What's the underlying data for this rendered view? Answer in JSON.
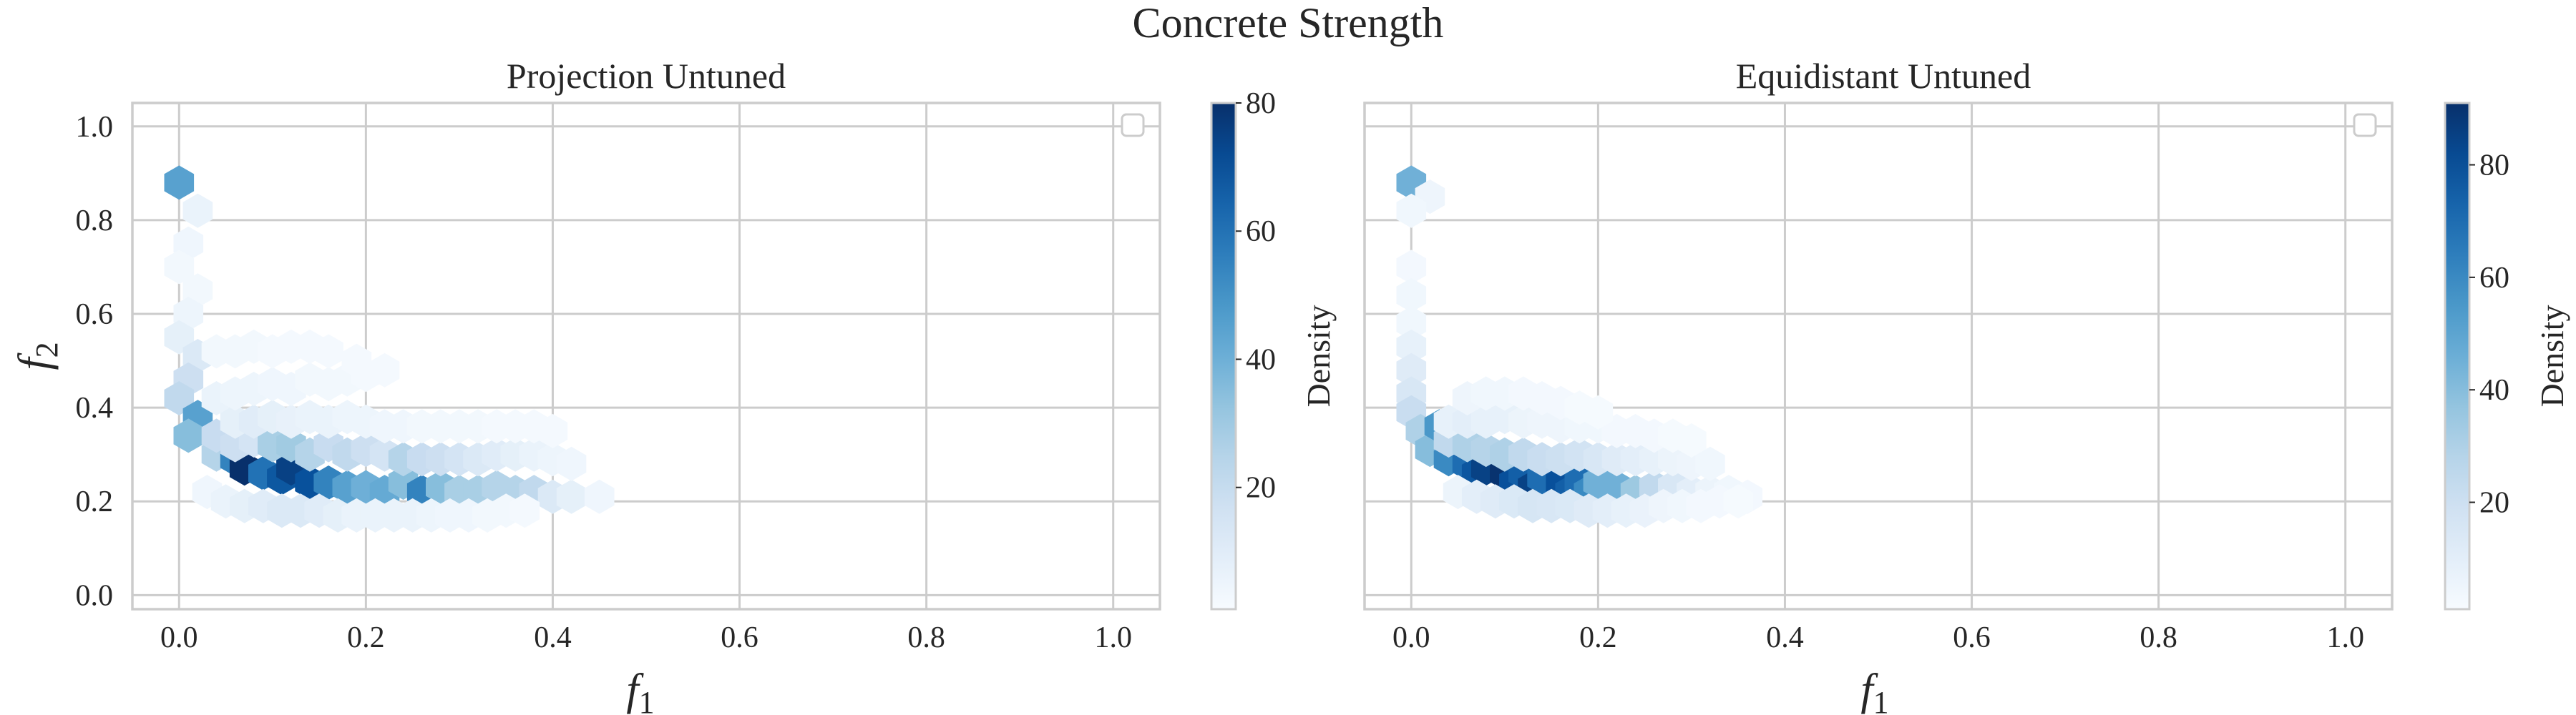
{
  "figure": {
    "suptitle": "Concrete Strength"
  },
  "chart_data": [
    {
      "type": "heatmap",
      "subtype": "hexbin",
      "title": "Projection Untuned",
      "xlabel": "f",
      "xlabel_sub": "1",
      "ylabel": "f",
      "ylabel_sub": "2",
      "xlim": [
        -0.05,
        1.05
      ],
      "ylim": [
        -0.03,
        1.05
      ],
      "xticks": [
        "0.0",
        "0.2",
        "0.4",
        "0.6",
        "0.8",
        "1.0"
      ],
      "yticks": [
        "0.0",
        "0.2",
        "0.4",
        "0.6",
        "0.8",
        "1.0"
      ],
      "grid": true,
      "colormap": "Blues",
      "colorbar": {
        "label": "Density",
        "min": 1,
        "max": 80,
        "ticks": [
          "20",
          "40",
          "60",
          "80"
        ]
      },
      "legend": "top-right (empty)",
      "cells": [
        [
          0.0,
          0.88,
          45
        ],
        [
          0.02,
          0.82,
          6
        ],
        [
          0.01,
          0.75,
          4
        ],
        [
          0.0,
          0.7,
          3
        ],
        [
          0.02,
          0.65,
          3
        ],
        [
          0.01,
          0.6,
          5
        ],
        [
          0.0,
          0.55,
          8
        ],
        [
          0.02,
          0.51,
          12
        ],
        [
          0.01,
          0.46,
          18
        ],
        [
          0.0,
          0.42,
          22
        ],
        [
          0.02,
          0.38,
          45
        ],
        [
          0.01,
          0.34,
          35
        ],
        [
          0.04,
          0.3,
          25
        ],
        [
          0.06,
          0.29,
          55
        ],
        [
          0.07,
          0.27,
          80
        ],
        [
          0.09,
          0.26,
          60
        ],
        [
          0.11,
          0.25,
          68
        ],
        [
          0.12,
          0.27,
          75
        ],
        [
          0.14,
          0.24,
          70
        ],
        [
          0.16,
          0.24,
          55
        ],
        [
          0.18,
          0.23,
          45
        ],
        [
          0.2,
          0.23,
          40
        ],
        [
          0.22,
          0.22,
          42
        ],
        [
          0.24,
          0.24,
          35
        ],
        [
          0.26,
          0.22,
          55
        ],
        [
          0.28,
          0.23,
          35
        ],
        [
          0.3,
          0.22,
          28
        ],
        [
          0.32,
          0.22,
          28
        ],
        [
          0.34,
          0.23,
          25
        ],
        [
          0.36,
          0.22,
          25
        ],
        [
          0.38,
          0.22,
          22
        ],
        [
          0.4,
          0.21,
          12
        ],
        [
          0.42,
          0.21,
          8
        ],
        [
          0.45,
          0.21,
          4
        ],
        [
          0.04,
          0.34,
          20
        ],
        [
          0.06,
          0.32,
          18
        ],
        [
          0.08,
          0.33,
          15
        ],
        [
          0.1,
          0.32,
          28
        ],
        [
          0.12,
          0.32,
          30
        ],
        [
          0.14,
          0.3,
          25
        ],
        [
          0.16,
          0.32,
          20
        ],
        [
          0.18,
          0.3,
          22
        ],
        [
          0.2,
          0.31,
          18
        ],
        [
          0.22,
          0.3,
          15
        ],
        [
          0.24,
          0.29,
          25
        ],
        [
          0.26,
          0.29,
          20
        ],
        [
          0.28,
          0.29,
          18
        ],
        [
          0.3,
          0.29,
          15
        ],
        [
          0.32,
          0.29,
          12
        ],
        [
          0.34,
          0.3,
          10
        ],
        [
          0.36,
          0.3,
          8
        ],
        [
          0.38,
          0.3,
          6
        ],
        [
          0.4,
          0.29,
          5
        ],
        [
          0.42,
          0.28,
          4
        ],
        [
          0.06,
          0.37,
          8
        ],
        [
          0.08,
          0.37,
          10
        ],
        [
          0.1,
          0.38,
          8
        ],
        [
          0.12,
          0.37,
          7
        ],
        [
          0.14,
          0.38,
          6
        ],
        [
          0.16,
          0.37,
          6
        ],
        [
          0.18,
          0.38,
          5
        ],
        [
          0.2,
          0.37,
          5
        ],
        [
          0.22,
          0.36,
          4
        ],
        [
          0.24,
          0.36,
          4
        ],
        [
          0.26,
          0.36,
          3
        ],
        [
          0.28,
          0.36,
          3
        ],
        [
          0.3,
          0.36,
          3
        ],
        [
          0.32,
          0.36,
          3
        ],
        [
          0.34,
          0.36,
          2
        ],
        [
          0.36,
          0.36,
          2
        ],
        [
          0.38,
          0.36,
          2
        ],
        [
          0.4,
          0.35,
          2
        ],
        [
          0.04,
          0.42,
          6
        ],
        [
          0.06,
          0.43,
          5
        ],
        [
          0.08,
          0.44,
          5
        ],
        [
          0.1,
          0.45,
          4
        ],
        [
          0.12,
          0.44,
          4
        ],
        [
          0.14,
          0.46,
          3
        ],
        [
          0.16,
          0.45,
          3
        ],
        [
          0.18,
          0.46,
          3
        ],
        [
          0.2,
          0.47,
          2
        ],
        [
          0.22,
          0.48,
          2
        ],
        [
          0.04,
          0.52,
          3
        ],
        [
          0.06,
          0.52,
          3
        ],
        [
          0.08,
          0.53,
          3
        ],
        [
          0.1,
          0.52,
          2
        ],
        [
          0.12,
          0.53,
          2
        ],
        [
          0.14,
          0.53,
          2
        ],
        [
          0.16,
          0.52,
          2
        ],
        [
          0.19,
          0.5,
          2
        ],
        [
          0.03,
          0.22,
          4
        ],
        [
          0.05,
          0.2,
          6
        ],
        [
          0.07,
          0.19,
          8
        ],
        [
          0.09,
          0.19,
          10
        ],
        [
          0.11,
          0.18,
          12
        ],
        [
          0.13,
          0.18,
          12
        ],
        [
          0.15,
          0.18,
          10
        ],
        [
          0.17,
          0.17,
          8
        ],
        [
          0.19,
          0.17,
          6
        ],
        [
          0.21,
          0.17,
          6
        ],
        [
          0.23,
          0.17,
          6
        ],
        [
          0.25,
          0.17,
          6
        ],
        [
          0.27,
          0.17,
          5
        ],
        [
          0.29,
          0.17,
          4
        ],
        [
          0.31,
          0.17,
          4
        ],
        [
          0.33,
          0.17,
          3
        ],
        [
          0.35,
          0.18,
          3
        ],
        [
          0.37,
          0.18,
          2
        ]
      ]
    },
    {
      "type": "heatmap",
      "subtype": "hexbin",
      "title": "Equidistant Untuned",
      "xlabel": "f",
      "xlabel_sub": "1",
      "xlim": [
        -0.05,
        1.05
      ],
      "ylim": [
        -0.03,
        1.05
      ],
      "xticks": [
        "0.0",
        "0.2",
        "0.4",
        "0.6",
        "0.8",
        "1.0"
      ],
      "grid": true,
      "colormap": "Blues",
      "colorbar": {
        "label": "Density",
        "min": 1,
        "max": 91,
        "ticks": [
          "20",
          "40",
          "60",
          "80"
        ]
      },
      "legend": "top-right (empty)",
      "cells": [
        [
          0.0,
          0.88,
          45
        ],
        [
          0.02,
          0.85,
          5
        ],
        [
          0.0,
          0.82,
          4
        ],
        [
          0.0,
          0.7,
          3
        ],
        [
          0.0,
          0.64,
          4
        ],
        [
          0.0,
          0.58,
          4
        ],
        [
          0.0,
          0.53,
          8
        ],
        [
          0.0,
          0.48,
          12
        ],
        [
          0.0,
          0.43,
          15
        ],
        [
          0.0,
          0.39,
          22
        ],
        [
          0.01,
          0.35,
          30
        ],
        [
          0.02,
          0.31,
          40
        ],
        [
          0.03,
          0.36,
          55
        ],
        [
          0.04,
          0.29,
          60
        ],
        [
          0.06,
          0.28,
          70
        ],
        [
          0.07,
          0.26,
          78
        ],
        [
          0.08,
          0.27,
          85
        ],
        [
          0.1,
          0.26,
          90
        ],
        [
          0.11,
          0.24,
          80
        ],
        [
          0.12,
          0.26,
          75
        ],
        [
          0.13,
          0.23,
          85
        ],
        [
          0.14,
          0.25,
          70
        ],
        [
          0.16,
          0.24,
          80
        ],
        [
          0.17,
          0.22,
          75
        ],
        [
          0.18,
          0.24,
          70
        ],
        [
          0.19,
          0.22,
          60
        ],
        [
          0.2,
          0.24,
          45
        ],
        [
          0.22,
          0.23,
          45
        ],
        [
          0.24,
          0.22,
          35
        ],
        [
          0.26,
          0.23,
          25
        ],
        [
          0.28,
          0.23,
          15
        ],
        [
          0.3,
          0.22,
          10
        ],
        [
          0.32,
          0.22,
          6
        ],
        [
          0.34,
          0.22,
          4
        ],
        [
          0.36,
          0.21,
          3
        ],
        [
          0.04,
          0.33,
          25
        ],
        [
          0.06,
          0.32,
          30
        ],
        [
          0.08,
          0.31,
          28
        ],
        [
          0.1,
          0.3,
          30
        ],
        [
          0.12,
          0.3,
          25
        ],
        [
          0.14,
          0.29,
          22
        ],
        [
          0.16,
          0.29,
          20
        ],
        [
          0.18,
          0.3,
          18
        ],
        [
          0.2,
          0.29,
          15
        ],
        [
          0.22,
          0.29,
          12
        ],
        [
          0.24,
          0.29,
          10
        ],
        [
          0.26,
          0.29,
          8
        ],
        [
          0.28,
          0.29,
          6
        ],
        [
          0.3,
          0.28,
          5
        ],
        [
          0.32,
          0.28,
          4
        ],
        [
          0.04,
          0.37,
          8
        ],
        [
          0.06,
          0.37,
          10
        ],
        [
          0.08,
          0.37,
          8
        ],
        [
          0.1,
          0.38,
          8
        ],
        [
          0.12,
          0.37,
          6
        ],
        [
          0.14,
          0.37,
          5
        ],
        [
          0.16,
          0.36,
          5
        ],
        [
          0.18,
          0.36,
          4
        ],
        [
          0.2,
          0.36,
          4
        ],
        [
          0.22,
          0.35,
          3
        ],
        [
          0.24,
          0.35,
          3
        ],
        [
          0.26,
          0.34,
          3
        ],
        [
          0.28,
          0.34,
          2
        ],
        [
          0.3,
          0.33,
          2
        ],
        [
          0.06,
          0.42,
          5
        ],
        [
          0.08,
          0.43,
          4
        ],
        [
          0.1,
          0.43,
          4
        ],
        [
          0.12,
          0.43,
          3
        ],
        [
          0.14,
          0.42,
          3
        ],
        [
          0.16,
          0.41,
          3
        ],
        [
          0.18,
          0.4,
          2
        ],
        [
          0.2,
          0.39,
          2
        ],
        [
          0.05,
          0.22,
          6
        ],
        [
          0.07,
          0.21,
          10
        ],
        [
          0.09,
          0.2,
          12
        ],
        [
          0.11,
          0.2,
          14
        ],
        [
          0.13,
          0.19,
          16
        ],
        [
          0.15,
          0.19,
          15
        ],
        [
          0.17,
          0.19,
          14
        ],
        [
          0.19,
          0.18,
          12
        ],
        [
          0.21,
          0.18,
          10
        ],
        [
          0.23,
          0.18,
          8
        ],
        [
          0.25,
          0.18,
          7
        ],
        [
          0.27,
          0.19,
          5
        ],
        [
          0.29,
          0.19,
          4
        ],
        [
          0.31,
          0.19,
          3
        ],
        [
          0.33,
          0.2,
          3
        ],
        [
          0.35,
          0.2,
          2
        ]
      ]
    }
  ]
}
